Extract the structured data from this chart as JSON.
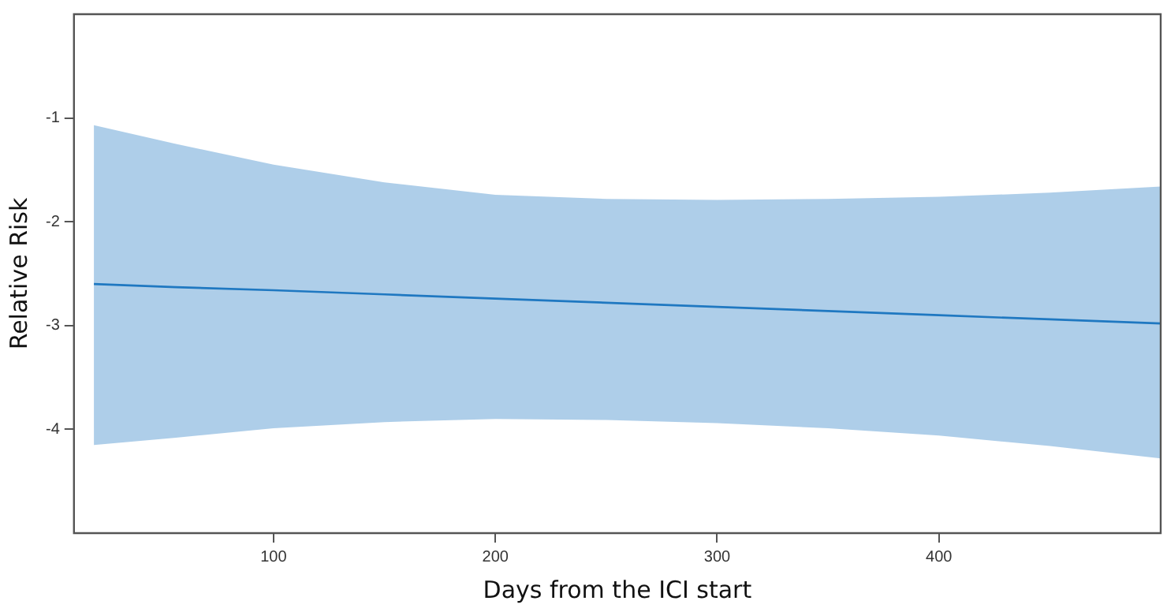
{
  "chart_data": {
    "type": "line",
    "xlabel": "Days from the ICI start",
    "ylabel": "Relative Risk",
    "xlim": [
      10,
      500
    ],
    "xticks": [
      100,
      200,
      300,
      400
    ],
    "ylim": [
      -5,
      0
    ],
    "yticks": [
      -4,
      -3,
      -2,
      -1
    ],
    "grid": false,
    "legend": false,
    "marker": "none",
    "line_style": "solid",
    "series": [
      {
        "color": "#1f78c1",
        "x": [
          19,
          56,
          100,
          150,
          200,
          250,
          300,
          350,
          400,
          450,
          500
        ],
        "values": [
          -2.6,
          -2.63,
          -2.66,
          -2.7,
          -2.74,
          -2.78,
          -2.82,
          -2.86,
          -2.9,
          -2.94,
          -2.98
        ],
        "upper": [
          -1.07,
          -1.25,
          -1.45,
          -1.62,
          -1.74,
          -1.78,
          -1.79,
          -1.78,
          -1.76,
          -1.72,
          -1.66
        ],
        "lower": [
          -4.15,
          -4.08,
          -3.99,
          -3.93,
          -3.9,
          -3.91,
          -3.94,
          -3.99,
          -4.06,
          -4.16,
          -4.28
        ]
      }
    ]
  }
}
